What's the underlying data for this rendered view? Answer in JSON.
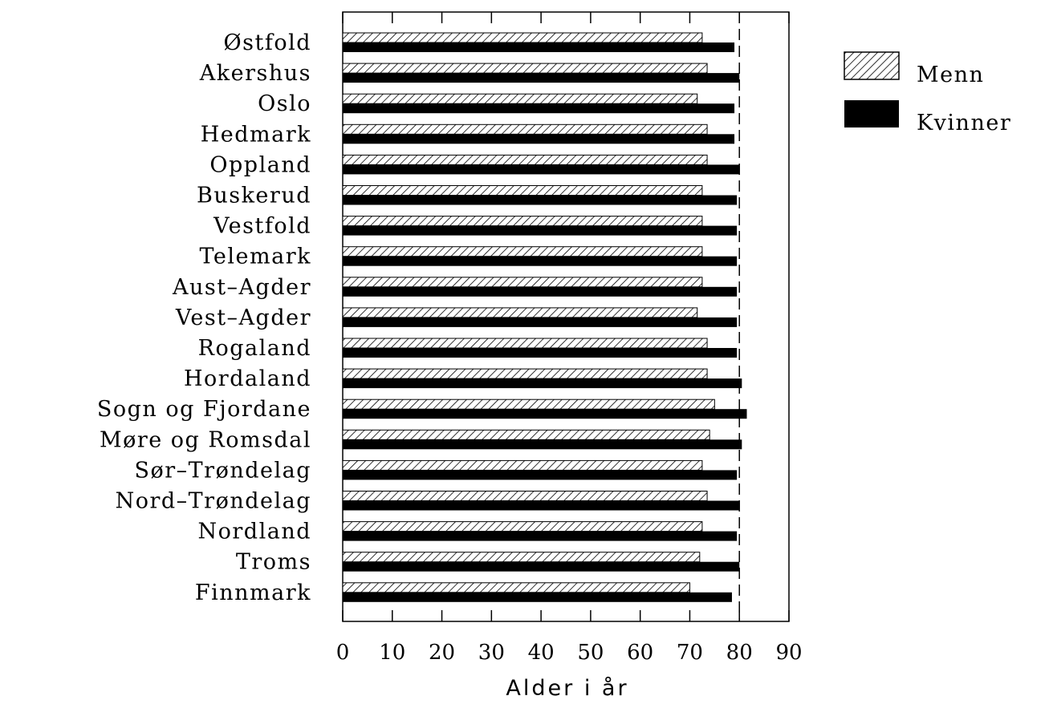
{
  "chart_data": {
    "type": "bar",
    "orientation": "horizontal",
    "categories": [
      "Østfold",
      "Akershus",
      "Oslo",
      "Hedmark",
      "Oppland",
      "Buskerud",
      "Vestfold",
      "Telemark",
      "Aust–Agder",
      "Vest–Agder",
      "Rogaland",
      "Hordaland",
      "Sogn og Fjordane",
      "Møre og Romsdal",
      "Sør–Trøndelag",
      "Nord–Trøndelag",
      "Nordland",
      "Troms",
      "Finnmark"
    ],
    "series": [
      {
        "name": "Menn",
        "pattern": "hatched",
        "values": [
          72.5,
          73.5,
          71.5,
          73.5,
          73.5,
          72.5,
          72.5,
          72.5,
          72.5,
          71.5,
          73.5,
          73.5,
          75,
          74,
          72.5,
          73.5,
          72.5,
          72,
          70
        ]
      },
      {
        "name": "Kvinner",
        "pattern": "solid",
        "values": [
          79,
          80,
          79,
          79,
          80,
          79.5,
          79.5,
          79.5,
          79.5,
          79.5,
          79.5,
          80.5,
          81.5,
          80.5,
          79.5,
          80,
          79.5,
          80,
          78.5
        ]
      }
    ],
    "title": "",
    "xlabel": "Alder i år",
    "ylabel": "",
    "xlim": [
      0,
      90
    ],
    "xticks": [
      0,
      10,
      20,
      30,
      40,
      50,
      60,
      70,
      80,
      90
    ],
    "reference_line": 80,
    "legend_position": "right-top",
    "grid": false,
    "colors": {
      "bar_fill": "#000000",
      "hatch_bg": "#ffffff",
      "axis": "#000000"
    }
  }
}
